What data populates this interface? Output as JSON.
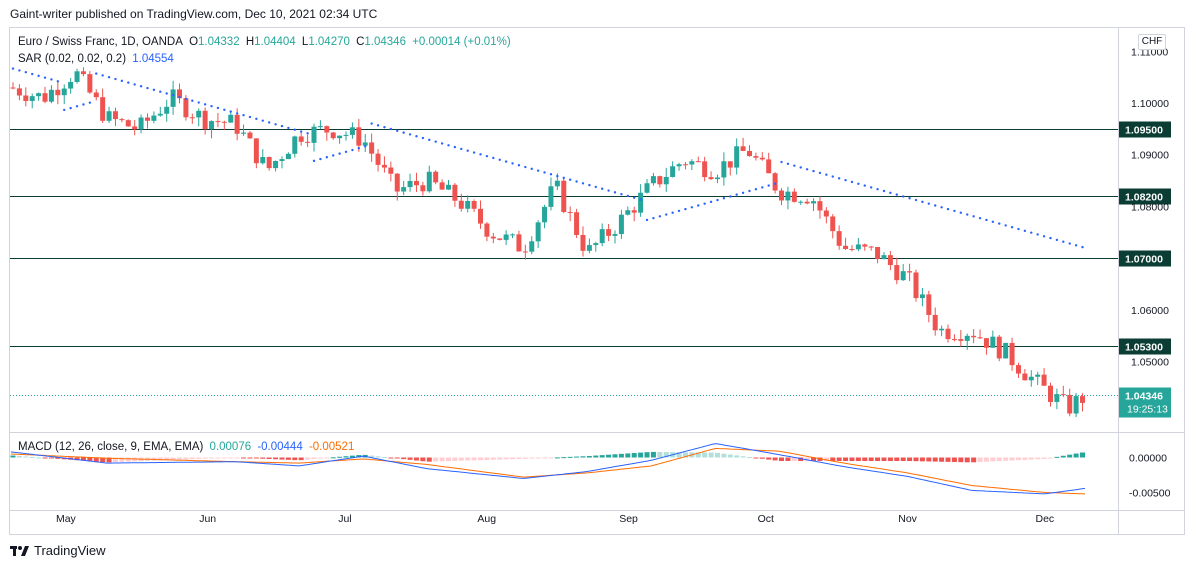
{
  "header": {
    "publisher": "Gaint-writer published on TradingView.com, Dec 10, 2021 02:34 UTC",
    "symbol_title": "Euro / Swiss Franc, 1D, OANDA",
    "ohlc": {
      "o_label": "O",
      "o": "1.04332",
      "h_label": "H",
      "h": "1.04404",
      "l_label": "L",
      "l": "1.04270",
      "c_label": "C",
      "c": "1.04346",
      "change": "+0.00014 (+0.01%)"
    },
    "sar_label": "SAR (0.02, 0.02, 0.2)",
    "sar_value": "1.04554",
    "macd_label": "MACD (12, 26, close, 9, EMA, EMA)",
    "macd_hist": "0.00076",
    "macd_line": "-0.00444",
    "macd_signal": "-0.00521",
    "currency": "CHF"
  },
  "footer": {
    "brand": "TradingView"
  },
  "colors": {
    "up": "#26a69a",
    "down": "#ef5350",
    "sar": "#2962ff",
    "macd_line": "#2962ff",
    "signal_line": "#ff6d00",
    "level_line": "#0b3d34",
    "price_label_bg": "#26a69a"
  },
  "chart_data": [
    {
      "type": "candlestick",
      "instrument": "EURCHF",
      "ylim": [
        1.0364,
        1.1145
      ],
      "y_ticks": [
        "1.11000",
        "1.10000",
        "1.09000",
        "1.08000",
        "1.06000",
        "1.05000"
      ],
      "x_ticks": [
        "May",
        "Jun",
        "Jul",
        "Aug",
        "Sep",
        "Oct",
        "Nov",
        "Dec"
      ],
      "horizontal_levels": [
        {
          "value": 1.095,
          "label": "1.09500"
        },
        {
          "value": 1.082,
          "label": "1.08200"
        },
        {
          "value": 1.07,
          "label": "1.07000"
        },
        {
          "value": 1.053,
          "label": "1.05300"
        }
      ],
      "last_price": {
        "value": 1.04346,
        "label": "1.04346",
        "countdown": "19:25:13"
      },
      "close_path_points": [
        [
          "Apr 19",
          1.103
        ],
        [
          "Apr 26",
          1.101
        ],
        [
          "May 3",
          1.106
        ],
        [
          "May 10",
          1.097
        ],
        [
          "May 17",
          1.095
        ],
        [
          "May 24",
          1.101
        ],
        [
          "May 31",
          1.097
        ],
        [
          "Jun 7",
          1.096
        ],
        [
          "Jun 14",
          1.087
        ],
        [
          "Jun 21",
          1.094
        ],
        [
          "Jun 28",
          1.095
        ],
        [
          "Jul 5",
          1.093
        ],
        [
          "Jul 12",
          1.083
        ],
        [
          "Jul 19",
          1.085
        ],
        [
          "Jul 26",
          1.081
        ],
        [
          "Aug 2",
          1.075
        ],
        [
          "Aug 9",
          1.072
        ],
        [
          "Aug 16",
          1.084
        ],
        [
          "Aug 23",
          1.071
        ],
        [
          "Aug 30",
          1.077
        ],
        [
          "Sep 6",
          1.084
        ],
        [
          "Sep 13",
          1.089
        ],
        [
          "Sep 20",
          1.087
        ],
        [
          "Sep 27",
          1.091
        ],
        [
          "Oct 4",
          1.083
        ],
        [
          "Oct 11",
          1.082
        ],
        [
          "Oct 18",
          1.072
        ],
        [
          "Oct 25",
          1.071
        ],
        [
          "Nov 1",
          1.066
        ],
        [
          "Nov 8",
          1.056
        ],
        [
          "Nov 15",
          1.056
        ],
        [
          "Nov 22",
          1.052
        ],
        [
          "Nov 29",
          1.046
        ],
        [
          "Dec 6",
          1.041
        ],
        [
          "Dec 10",
          1.0435
        ]
      ]
    },
    {
      "type": "macd",
      "ylim": [
        -0.0075,
        0.0035
      ],
      "y_ticks": [
        "0.00000",
        "-0.00500"
      ],
      "histogram_last": 0.00076,
      "macd_last": -0.00444,
      "signal_last": -0.00521,
      "macd_path_points": [
        [
          "Apr 19",
          0.0008
        ],
        [
          "May 10",
          -0.0008
        ],
        [
          "Jun 7",
          -0.0006
        ],
        [
          "Jun 21",
          -0.0012
        ],
        [
          "Jul 5",
          0.0002
        ],
        [
          "Jul 19",
          -0.0016
        ],
        [
          "Aug 9",
          -0.003
        ],
        [
          "Aug 23",
          -0.002
        ],
        [
          "Sep 6",
          -0.0004
        ],
        [
          "Sep 20",
          0.002
        ],
        [
          "Oct 4",
          0.0004
        ],
        [
          "Oct 18",
          -0.0013
        ],
        [
          "Nov 1",
          -0.0027
        ],
        [
          "Nov 15",
          -0.0047
        ],
        [
          "Dec 1",
          -0.0052
        ],
        [
          "Dec 10",
          -0.0044
        ]
      ],
      "signal_path_points": [
        [
          "Apr 19",
          0.0005
        ],
        [
          "May 10",
          -0.0001
        ],
        [
          "Jun 7",
          -0.0006
        ],
        [
          "Jun 21",
          -0.0008
        ],
        [
          "Jul 5",
          -0.0002
        ],
        [
          "Jul 19",
          -0.001
        ],
        [
          "Aug 9",
          -0.0028
        ],
        [
          "Aug 23",
          -0.0022
        ],
        [
          "Sep 6",
          -0.0012
        ],
        [
          "Sep 20",
          0.0013
        ],
        [
          "Oct 4",
          0.0009
        ],
        [
          "Oct 18",
          -0.0008
        ],
        [
          "Nov 1",
          -0.0022
        ],
        [
          "Nov 15",
          -0.004
        ],
        [
          "Dec 1",
          -0.005
        ],
        [
          "Dec 10",
          -0.0052
        ]
      ]
    }
  ]
}
